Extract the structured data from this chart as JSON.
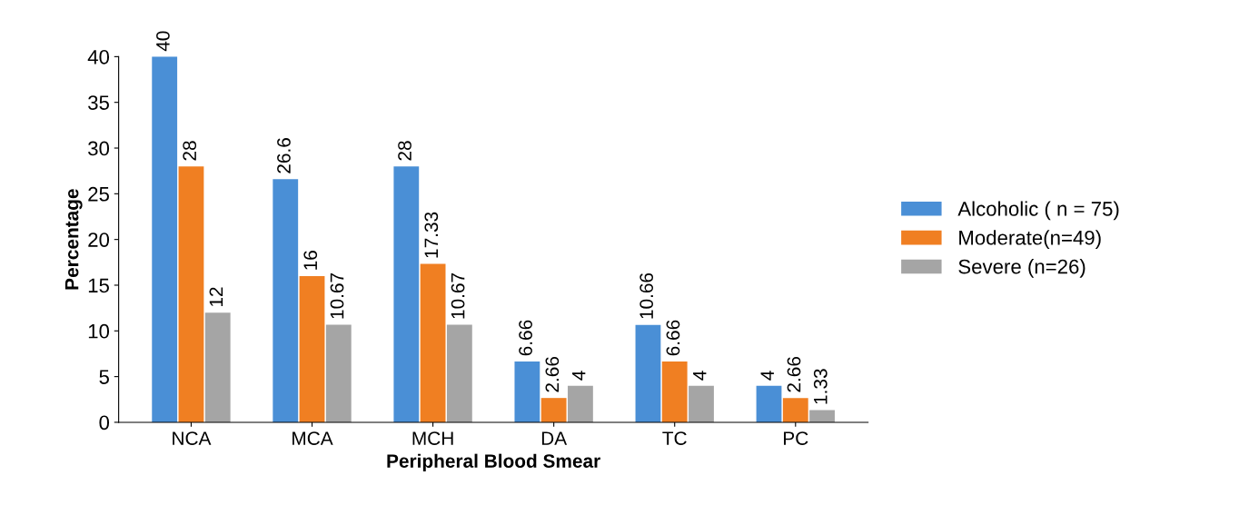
{
  "chart_data": {
    "type": "bar",
    "xlabel": "Peripheral Blood Smear",
    "ylabel": "Percentage",
    "categories": [
      "NCA",
      "MCA",
      "MCH",
      "DA",
      "TC",
      "PC"
    ],
    "series": [
      {
        "name": "Alcoholic ( n = 75)",
        "color": "#4a8fd6",
        "values": [
          40,
          26.6,
          28,
          6.66,
          10.66,
          4
        ]
      },
      {
        "name": "Moderate(n=49)",
        "color": "#f07f22",
        "values": [
          28,
          16,
          17.33,
          2.66,
          6.66,
          2.66
        ]
      },
      {
        "name": "Severe (n=26)",
        "color": "#a5a5a5",
        "values": [
          12,
          10.67,
          10.67,
          4,
          4,
          1.33
        ]
      }
    ],
    "ylim": [
      0,
      40
    ],
    "yticks": [
      0,
      5,
      10,
      15,
      20,
      25,
      30,
      35,
      40
    ],
    "data_labels": true,
    "legend": "right",
    "grid": false
  }
}
